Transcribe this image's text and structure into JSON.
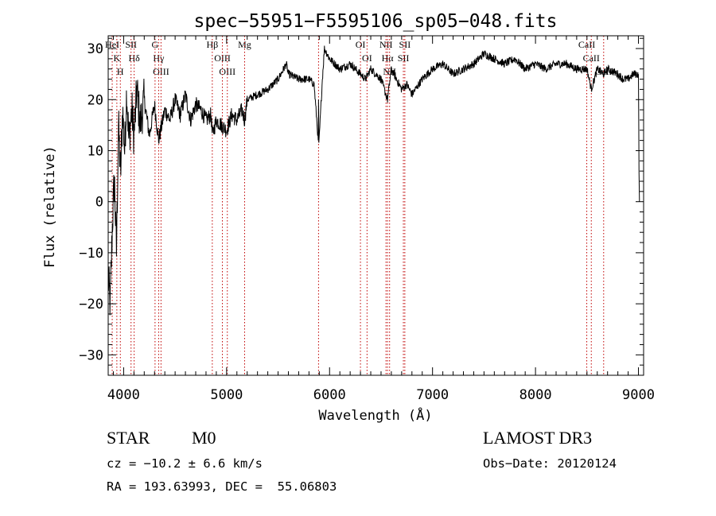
{
  "chart_data": {
    "type": "line",
    "title": "spec−55951−F5595106_sp05−048.fits",
    "xlabel": "Wavelength (Å)",
    "ylabel": "Flux (relative)",
    "xlim": [
      3850,
      9050
    ],
    "ylim": [
      -34,
      32.5
    ],
    "x_ticks": [
      4000,
      5000,
      6000,
      7000,
      8000,
      9000
    ],
    "x_tick_labels": [
      "4000",
      "5000",
      "6000",
      "7000",
      "8000",
      "9000"
    ],
    "y_ticks": [
      -30,
      -20,
      -10,
      0,
      10,
      20,
      30
    ],
    "y_tick_labels": [
      "−30",
      "−20",
      "−10",
      "0",
      "10",
      "20",
      "30"
    ],
    "grid": false,
    "series": [
      {
        "name": "flux",
        "color": "#000000",
        "x": [
          3850,
          3870,
          3890,
          3910,
          3930,
          3950,
          3970,
          3990,
          4010,
          4030,
          4050,
          4080,
          4100,
          4130,
          4160,
          4200,
          4250,
          4300,
          4340,
          4400,
          4450,
          4500,
          4550,
          4600,
          4650,
          4700,
          4750,
          4800,
          4850,
          4861,
          4900,
          4950,
          5000,
          5050,
          5100,
          5150,
          5175,
          5200,
          5300,
          5400,
          5500,
          5580,
          5600,
          5700,
          5800,
          5850,
          5890,
          5893,
          5896,
          5930,
          5950,
          6000,
          6100,
          6200,
          6250,
          6300,
          6350,
          6400,
          6450,
          6500,
          6563,
          6600,
          6650,
          6700,
          6750,
          6800,
          6900,
          7000,
          7100,
          7200,
          7300,
          7400,
          7500,
          7600,
          7700,
          7800,
          7900,
          8000,
          8100,
          8200,
          8300,
          8400,
          8500,
          8542,
          8600,
          8662,
          8700,
          8800,
          8850,
          8900,
          8950,
          9000,
          9005,
          9010
        ],
        "y": [
          -15,
          -20,
          -5,
          5,
          -10,
          15,
          5,
          18,
          10,
          22,
          12,
          18,
          13,
          22,
          15,
          20,
          13,
          19,
          12,
          18,
          16,
          20,
          17,
          21,
          16,
          19,
          18,
          16,
          17,
          13,
          16,
          15,
          14,
          17,
          16,
          18,
          16,
          20,
          21,
          22,
          24,
          27,
          25,
          24,
          24,
          23,
          12,
          20,
          11,
          24,
          30,
          28,
          26,
          27,
          26,
          25,
          24,
          26,
          25,
          24,
          20,
          26,
          24,
          22,
          23,
          21,
          24,
          26,
          27,
          25,
          26,
          27,
          29,
          28,
          27,
          28,
          26,
          27,
          26,
          27,
          27,
          26,
          26,
          22,
          26,
          25,
          26,
          25,
          24,
          24,
          25,
          25,
          6,
          0
        ]
      }
    ],
    "lines": [
      {
        "wavelength": 3889,
        "labels": [
          "HeI"
        ]
      },
      {
        "wavelength": 3934,
        "labels": [
          "K"
        ]
      },
      {
        "wavelength": 3968,
        "labels": [
          "H"
        ]
      },
      {
        "wavelength": 4072,
        "labels": [
          "SII"
        ]
      },
      {
        "wavelength": 4102,
        "labels": [
          "Hδ"
        ]
      },
      {
        "wavelength": 4305,
        "labels": [
          "G"
        ]
      },
      {
        "wavelength": 4340,
        "labels": [
          "Hγ"
        ]
      },
      {
        "wavelength": 4363,
        "labels": [
          "OIII"
        ]
      },
      {
        "wavelength": 4861,
        "labels": [
          "Hβ"
        ]
      },
      {
        "wavelength": 4959,
        "labels": [
          "OIII"
        ]
      },
      {
        "wavelength": 5007,
        "labels": [
          "OIII"
        ]
      },
      {
        "wavelength": 5175,
        "labels": [
          "Mg"
        ]
      },
      {
        "wavelength": 5893,
        "labels": []
      },
      {
        "wavelength": 6300,
        "labels": [
          "OI"
        ]
      },
      {
        "wavelength": 6364,
        "labels": [
          "OI"
        ]
      },
      {
        "wavelength": 6548,
        "labels": [
          "NII"
        ]
      },
      {
        "wavelength": 6563,
        "labels": [
          "Hα"
        ]
      },
      {
        "wavelength": 6583,
        "labels": [
          "NII"
        ]
      },
      {
        "wavelength": 6717,
        "labels": [
          "SII"
        ]
      },
      {
        "wavelength": 6731,
        "labels": [
          "SII"
        ]
      },
      {
        "wavelength": 8498,
        "labels": [
          "CaII"
        ]
      },
      {
        "wavelength": 8542,
        "labels": [
          "CaII"
        ]
      },
      {
        "wavelength": 8662,
        "labels": [
          "CaII"
        ]
      }
    ],
    "line_color": "#c00000"
  },
  "info": {
    "class": "STAR",
    "subclass": "M0",
    "cz": "cz = −10.2 ± 6.6 km/s",
    "coords": "RA = 193.63993, DEC =  55.06803",
    "survey": "LAMOST DR3",
    "obs_date": "Obs−Date: 20120124"
  }
}
